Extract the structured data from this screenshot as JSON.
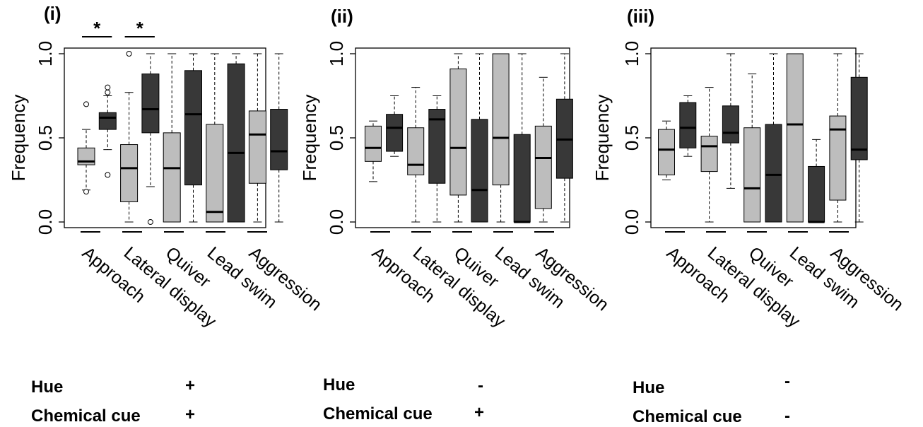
{
  "chart_data": [
    {
      "type": "box",
      "panel_label": "(i)",
      "ylabel": "Frequency",
      "ylim": [
        0,
        1
      ],
      "yticks": [
        "0.0",
        "0.5",
        "1.0"
      ],
      "categories": [
        "Approach",
        "Lateral display",
        "Quiver",
        "Lead swim",
        "Aggression"
      ],
      "fill_colors": [
        "#bdbdbd",
        "#383838"
      ],
      "significance": [
        "*",
        "*",
        "",
        "",
        ""
      ],
      "boxes": [
        {
          "min": 0.19,
          "q1": 0.34,
          "median": 0.36,
          "q3": 0.44,
          "max": 0.55,
          "outliers": [
            0.18,
            0.7
          ]
        },
        {
          "min": 0.43,
          "q1": 0.55,
          "median": 0.62,
          "q3": 0.65,
          "max": 0.75,
          "outliers": [
            0.28,
            0.77,
            0.8
          ]
        },
        {
          "min": 0.0,
          "q1": 0.12,
          "median": 0.32,
          "q3": 0.46,
          "max": 0.77,
          "outliers": [
            1.0
          ]
        },
        {
          "min": 0.21,
          "q1": 0.53,
          "median": 0.67,
          "q3": 0.88,
          "max": 1.0,
          "outliers": [
            0.0
          ]
        },
        {
          "min": 0.0,
          "q1": 0.0,
          "median": 0.32,
          "q3": 0.53,
          "max": 1.0,
          "outliers": []
        },
        {
          "min": 0.0,
          "q1": 0.22,
          "median": 0.64,
          "q3": 0.9,
          "max": 1.0,
          "outliers": []
        },
        {
          "min": 0.0,
          "q1": 0.0,
          "median": 0.06,
          "q3": 0.58,
          "max": 1.0,
          "outliers": []
        },
        {
          "min": 0.0,
          "q1": 0.0,
          "median": 0.41,
          "q3": 0.94,
          "max": 1.0,
          "outliers": []
        },
        {
          "min": 0.0,
          "q1": 0.23,
          "median": 0.52,
          "q3": 0.66,
          "max": 1.0,
          "outliers": []
        },
        {
          "min": 0.0,
          "q1": 0.31,
          "median": 0.42,
          "q3": 0.67,
          "max": 1.0,
          "outliers": []
        }
      ],
      "treatment": {
        "hue_label": "Hue",
        "hue_value": "+",
        "cue_label": "Chemical cue",
        "cue_value": "+"
      }
    },
    {
      "type": "box",
      "panel_label": "(ii)",
      "ylabel": "Frequency",
      "ylim": [
        0,
        1
      ],
      "yticks": [
        "0.0",
        "0.5",
        "1.0"
      ],
      "categories": [
        "Approach",
        "Lateral display",
        "Quiver",
        "Lead swim",
        "Aggression"
      ],
      "fill_colors": [
        "#bdbdbd",
        "#383838"
      ],
      "significance": [
        "",
        "",
        "",
        "",
        ""
      ],
      "boxes": [
        {
          "min": 0.24,
          "q1": 0.36,
          "median": 0.44,
          "q3": 0.57,
          "max": 0.6,
          "outliers": []
        },
        {
          "min": 0.39,
          "q1": 0.42,
          "median": 0.56,
          "q3": 0.64,
          "max": 0.75,
          "outliers": []
        },
        {
          "min": 0.0,
          "q1": 0.28,
          "median": 0.34,
          "q3": 0.56,
          "max": 0.8,
          "outliers": []
        },
        {
          "min": 0.0,
          "q1": 0.23,
          "median": 0.61,
          "q3": 0.67,
          "max": 0.75,
          "outliers": []
        },
        {
          "min": 0.0,
          "q1": 0.16,
          "median": 0.44,
          "q3": 0.91,
          "max": 1.0,
          "outliers": []
        },
        {
          "min": 0.0,
          "q1": 0.0,
          "median": 0.19,
          "q3": 0.61,
          "max": 1.0,
          "outliers": []
        },
        {
          "min": 0.0,
          "q1": 0.22,
          "median": 0.5,
          "q3": 1.0,
          "max": 1.0,
          "outliers": []
        },
        {
          "min": 0.0,
          "q1": 0.0,
          "median": 0.0,
          "q3": 0.52,
          "max": 1.0,
          "outliers": []
        },
        {
          "min": 0.0,
          "q1": 0.08,
          "median": 0.38,
          "q3": 0.57,
          "max": 0.86,
          "outliers": []
        },
        {
          "min": 0.0,
          "q1": 0.26,
          "median": 0.49,
          "q3": 0.73,
          "max": 1.0,
          "outliers": []
        }
      ],
      "treatment": {
        "hue_label": "Hue",
        "hue_value": "-",
        "cue_label": "Chemical cue",
        "cue_value": "+"
      }
    },
    {
      "type": "box",
      "panel_label": "(iii)",
      "ylabel": "Frequency",
      "ylim": [
        0,
        1
      ],
      "yticks": [
        "0.0",
        "0.5",
        "1.0"
      ],
      "categories": [
        "Approach",
        "Lateral display",
        "Quiver",
        "Lead swim",
        "Aggression"
      ],
      "fill_colors": [
        "#bdbdbd",
        "#383838"
      ],
      "significance": [
        "",
        "",
        "",
        "",
        ""
      ],
      "boxes": [
        {
          "min": 0.25,
          "q1": 0.28,
          "median": 0.43,
          "q3": 0.55,
          "max": 0.6,
          "outliers": []
        },
        {
          "min": 0.39,
          "q1": 0.44,
          "median": 0.56,
          "q3": 0.71,
          "max": 0.75,
          "outliers": []
        },
        {
          "min": 0.0,
          "q1": 0.3,
          "median": 0.45,
          "q3": 0.51,
          "max": 0.8,
          "outliers": []
        },
        {
          "min": 0.2,
          "q1": 0.47,
          "median": 0.53,
          "q3": 0.69,
          "max": 1.0,
          "outliers": []
        },
        {
          "min": 0.0,
          "q1": 0.0,
          "median": 0.2,
          "q3": 0.56,
          "max": 0.88,
          "outliers": []
        },
        {
          "min": 0.0,
          "q1": 0.0,
          "median": 0.28,
          "q3": 0.58,
          "max": 1.0,
          "outliers": []
        },
        {
          "min": 0.0,
          "q1": 0.0,
          "median": 0.58,
          "q3": 1.0,
          "max": 1.0,
          "outliers": []
        },
        {
          "min": 0.0,
          "q1": 0.0,
          "median": 0.0,
          "q3": 0.33,
          "max": 0.49,
          "outliers": []
        },
        {
          "min": 0.0,
          "q1": 0.13,
          "median": 0.55,
          "q3": 0.63,
          "max": 1.0,
          "outliers": []
        },
        {
          "min": 0.0,
          "q1": 0.37,
          "median": 0.43,
          "q3": 0.86,
          "max": 1.0,
          "outliers": []
        }
      ],
      "treatment": {
        "hue_label": "Hue",
        "hue_value": "-",
        "cue_label": "Chemical cue",
        "cue_value": "-"
      }
    }
  ]
}
